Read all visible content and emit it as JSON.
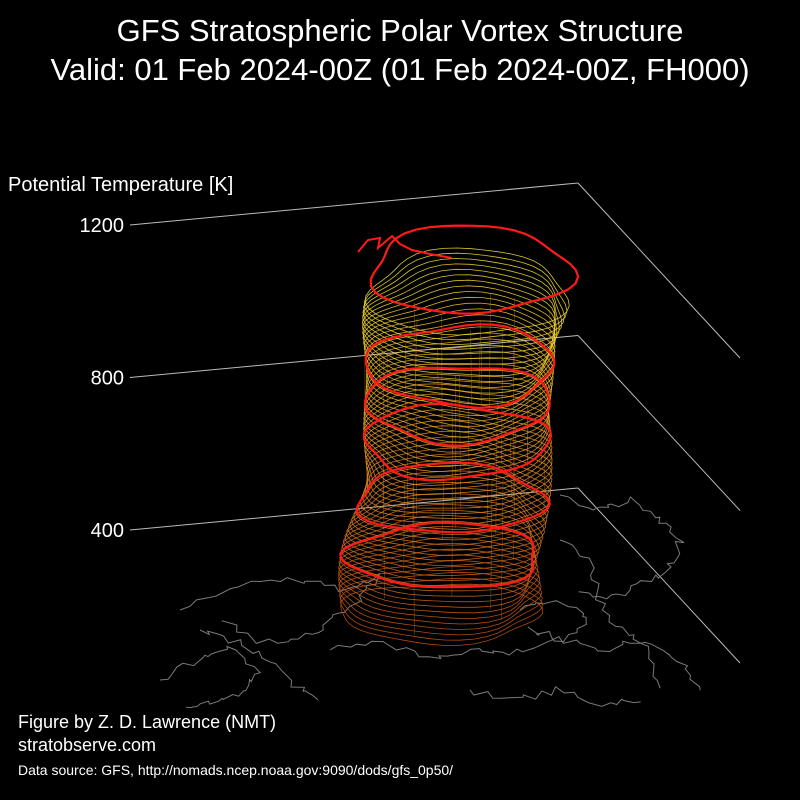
{
  "title": "GFS Stratospheric Polar Vortex Structure",
  "subtitle": "Valid: 01 Feb 2024-00Z  (01 Feb 2024-00Z, FH000)",
  "chart_data": {
    "type": "3d-isosurface",
    "zlabel": "Potential Temperature [K]",
    "zticks": [
      400,
      800,
      1200
    ],
    "zlim": [
      200,
      1200
    ],
    "levels_K": [
      400,
      500,
      600,
      700,
      800,
      900,
      1000,
      1100,
      1200
    ],
    "highlight_levels_K": [
      450,
      600,
      750,
      850,
      950,
      1200
    ],
    "colors": {
      "background": "#000000",
      "contour_low": "#c05010",
      "contour_mid": "#e09020",
      "contour_high": "#f0e030",
      "highlight": "#ff1a1a",
      "coastline": "#7a7a7a",
      "frame": "#bbbbbb"
    }
  },
  "credits": {
    "author": "Figure by Z. D. Lawrence (NMT)",
    "site": "stratobserve.com",
    "source": "Data source: GFS, http://nomads.ncep.noaa.gov:9090/dods/gfs_0p50/"
  }
}
